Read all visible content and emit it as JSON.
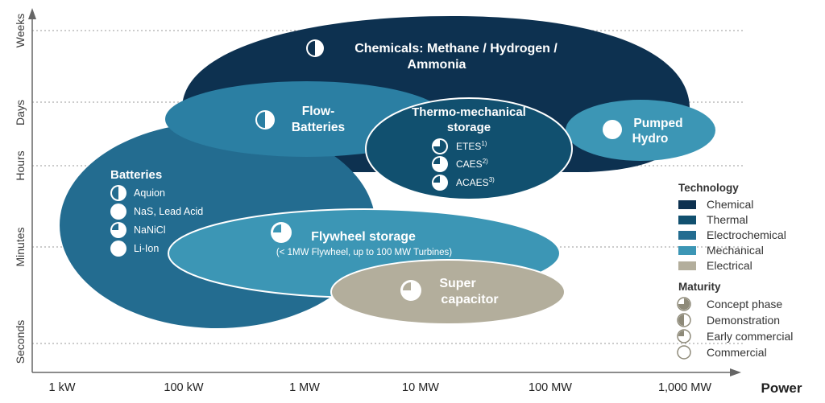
{
  "y_axis": [
    "Weeks",
    "Days",
    "Hours",
    "Minutes",
    "Seconds"
  ],
  "x_axis": {
    "ticks": [
      "1 kW",
      "100 kW",
      "1 MW",
      "10 MW",
      "100 MW",
      "1,000 MW"
    ],
    "title": "Power"
  },
  "regions": {
    "chemicals": {
      "line1": "Chemicals: Methane / Hydrogen /",
      "line2": "Ammonia"
    },
    "flow": {
      "line1": "Flow-",
      "line2": "Batteries"
    },
    "thermo": {
      "line1": "Thermo-mechanical",
      "line2": "storage",
      "items": [
        "ETES",
        "CAES",
        "ACAES"
      ],
      "notes": [
        "1)",
        "2)",
        "3)"
      ]
    },
    "pumped": {
      "line1": "Pumped",
      "line2": "Hydro"
    },
    "batteries": {
      "title": "Batteries",
      "items": [
        "Aquion",
        "NaS, Lead Acid",
        "NaNiCl",
        "Li-Ion"
      ]
    },
    "flywheel": {
      "title": "Flywheel storage",
      "sub": "(< 1MW Flywheel, up to 100 MW Turbines)"
    },
    "supercap": {
      "line1": "Super",
      "line2": "capacitor"
    }
  },
  "legend": {
    "technology_title": "Technology",
    "technology": [
      {
        "label": "Chemical",
        "color": "#0d3150"
      },
      {
        "label": "Thermal",
        "color": "#11506f"
      },
      {
        "label": "Electrochemical",
        "color": "#236c90"
      },
      {
        "label": "Mechanical",
        "color": "#3c96b5"
      },
      {
        "label": "Electrical",
        "color": "#b3ae9c"
      }
    ],
    "maturity_title": "Maturity",
    "maturity": [
      "Concept phase",
      "Demonstration",
      "Early commercial",
      "Commercial"
    ]
  }
}
